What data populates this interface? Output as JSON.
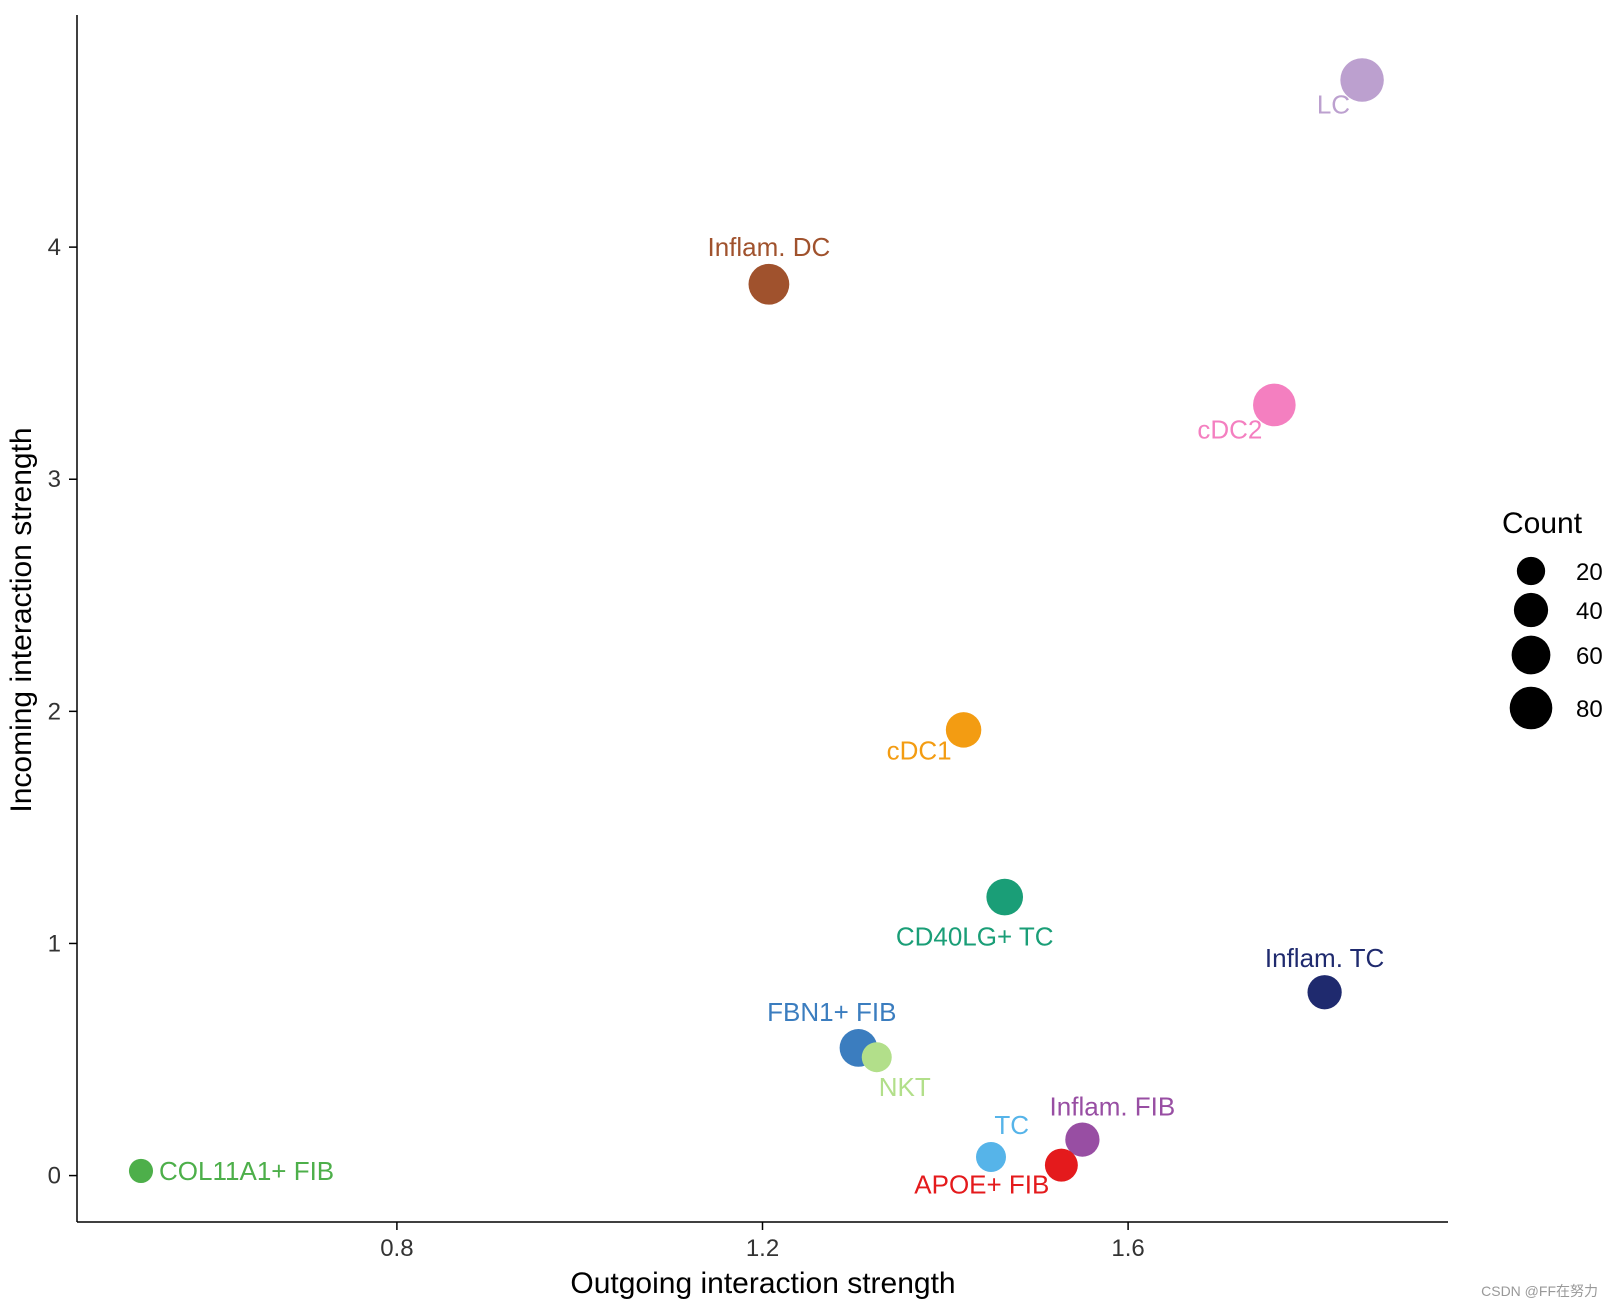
{
  "chart_data": {
    "type": "scatter",
    "xlabel": "Outgoing interaction strength",
    "ylabel": "Incoming interaction strength",
    "xlim": [
      0.45,
      1.95
    ],
    "ylim": [
      -0.2,
      5.0
    ],
    "x_ticks": [
      0.8,
      1.2,
      1.6
    ],
    "y_ticks": [
      0,
      1,
      2,
      3,
      4
    ],
    "x_tick_labels": [
      "0.8",
      "1.2",
      "1.6"
    ],
    "y_tick_labels": [
      "0",
      "1",
      "2",
      "3",
      "4"
    ],
    "grid": false,
    "legend": {
      "title": "Count",
      "position": "right",
      "entries": [
        {
          "label": "20",
          "value": 20
        },
        {
          "label": "40",
          "value": 40
        },
        {
          "label": "60",
          "value": 60
        },
        {
          "label": "80",
          "value": 80
        }
      ],
      "color": "#000000"
    },
    "points": [
      {
        "name": "LC",
        "label": "LC",
        "x": 1.856,
        "y": 4.72,
        "count": 85,
        "color": "#bca0cf",
        "label_pos": "below-left"
      },
      {
        "name": "Inflam. DC",
        "label": "Inflam. DC",
        "x": 1.207,
        "y": 3.84,
        "count": 70,
        "color": "#a0522d",
        "label_pos": "above"
      },
      {
        "name": "cDC2",
        "label": "cDC2",
        "x": 1.76,
        "y": 3.32,
        "count": 80,
        "color": "#f47fc0",
        "label_pos": "below-left"
      },
      {
        "name": "cDC1",
        "label": "cDC1",
        "x": 1.42,
        "y": 1.92,
        "count": 45,
        "color": "#f39c12",
        "label_pos": "below-left"
      },
      {
        "name": "CD40LG+ TC",
        "label": "CD40LG+ TC",
        "x": 1.465,
        "y": 1.2,
        "count": 50,
        "color": "#1a9e77",
        "label_pos": "below"
      },
      {
        "name": "Inflam. TC",
        "label": "Inflam. TC",
        "x": 1.815,
        "y": 0.79,
        "count": 40,
        "color": "#1f2a6e",
        "label_pos": "above"
      },
      {
        "name": "FBN1+ FIB",
        "label": "FBN1+ FIB",
        "x": 1.305,
        "y": 0.55,
        "count": 55,
        "color": "#3b7dbf",
        "label_pos": "above-left"
      },
      {
        "name": "NKT",
        "label": "NKT",
        "x": 1.325,
        "y": 0.51,
        "count": 25,
        "color": "#b2df8a",
        "label_pos": "below-right"
      },
      {
        "name": "Inflam. FIB",
        "label": "Inflam. FIB",
        "x": 1.55,
        "y": 0.155,
        "count": 40,
        "color": "#984ea3",
        "label_pos": "above-right"
      },
      {
        "name": "TC",
        "label": "TC",
        "x": 1.45,
        "y": 0.08,
        "count": 25,
        "color": "#56b4e9",
        "label_pos": "above-left"
      },
      {
        "name": "APOE+ FIB",
        "label": "APOE+ FIB",
        "x": 1.527,
        "y": 0.045,
        "count": 35,
        "color": "#e41a1c",
        "label_pos": "below-left"
      },
      {
        "name": "COL11A1+ FIB",
        "label": "COL11A1+ FIB",
        "x": 0.52,
        "y": 0.02,
        "count": 10,
        "color": "#4daf4a",
        "label_pos": "right"
      }
    ]
  },
  "watermark": "CSDN @FF在努力"
}
